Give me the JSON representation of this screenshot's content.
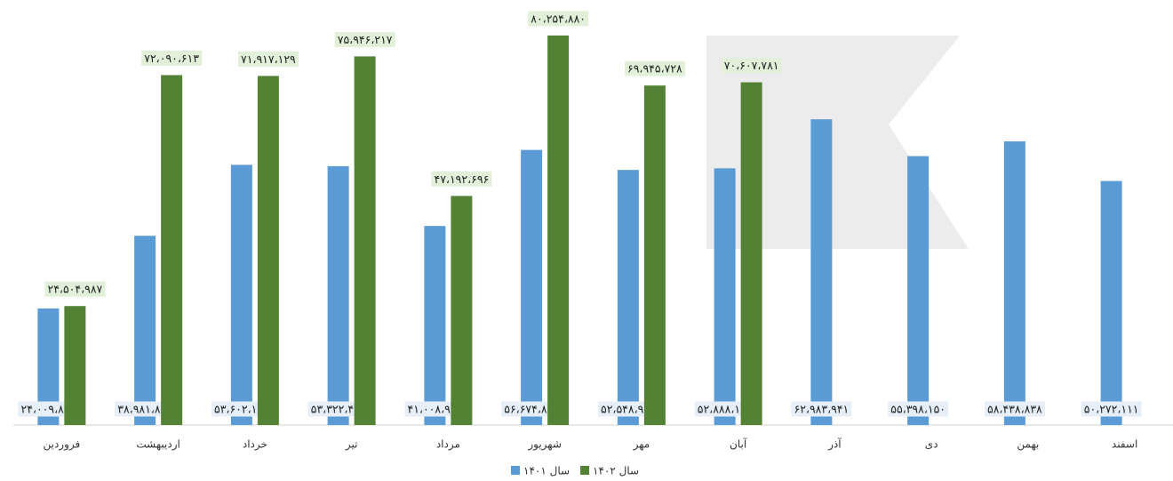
{
  "chart_data": {
    "type": "bar",
    "categories": [
      "فروردین",
      "اردیبهشت",
      "خرداد",
      "تیر",
      "مرداد",
      "شهریور",
      "مهر",
      "آبان",
      "آذر",
      "دی",
      "بهمن",
      "اسفند"
    ],
    "ylim": [
      0,
      85000000
    ],
    "legend": "bottom",
    "series": [
      {
        "name": "سال ۱۴۰۱",
        "color": "#5b9bd5",
        "values": [
          24009823,
          38981812,
          53602108,
          53322467,
          41008966,
          56674835,
          52548960,
          52888169,
          62983941,
          55398150,
          58438838,
          50272111
        ],
        "value_labels": [
          "۲۴،۰۰۹،۸۲۳",
          "۳۸،۹۸۱،۸۱۲",
          "۵۳،۶۰۲،۱۰۸",
          "۵۳،۳۲۲،۴۶۷",
          "۴۱،۰۰۸،۹۶۶",
          "۵۶،۶۷۴،۸۳۵",
          "۵۲،۵۴۸،۹۶۰",
          "۵۲،۸۸۸،۱۶۹",
          "۶۲،۹۸۳،۹۴۱",
          "۵۵،۳۹۸،۱۵۰",
          "۵۸،۴۳۸،۸۳۸",
          "۵۰،۲۷۲،۱۱۱"
        ]
      },
      {
        "name": "سال ۱۴۰۲",
        "color": "#548235",
        "values": [
          24504987,
          72090613,
          71917129,
          75946217,
          47192696,
          80254880,
          69945728,
          70607781,
          null,
          null,
          null,
          null
        ],
        "value_labels": [
          "۲۴،۵۰۴،۹۸۷",
          "۷۲،۰۹۰،۶۱۳",
          "۷۱،۹۱۷،۱۲۹",
          "۷۵،۹۴۶،۲۱۷",
          "۴۷،۱۹۲،۶۹۶",
          "۸۰،۲۵۴،۸۸۰",
          "۶۹،۹۴۵،۷۲۸",
          "۷۰،۶۰۷،۷۸۱",
          null,
          null,
          null,
          null
        ]
      }
    ]
  }
}
